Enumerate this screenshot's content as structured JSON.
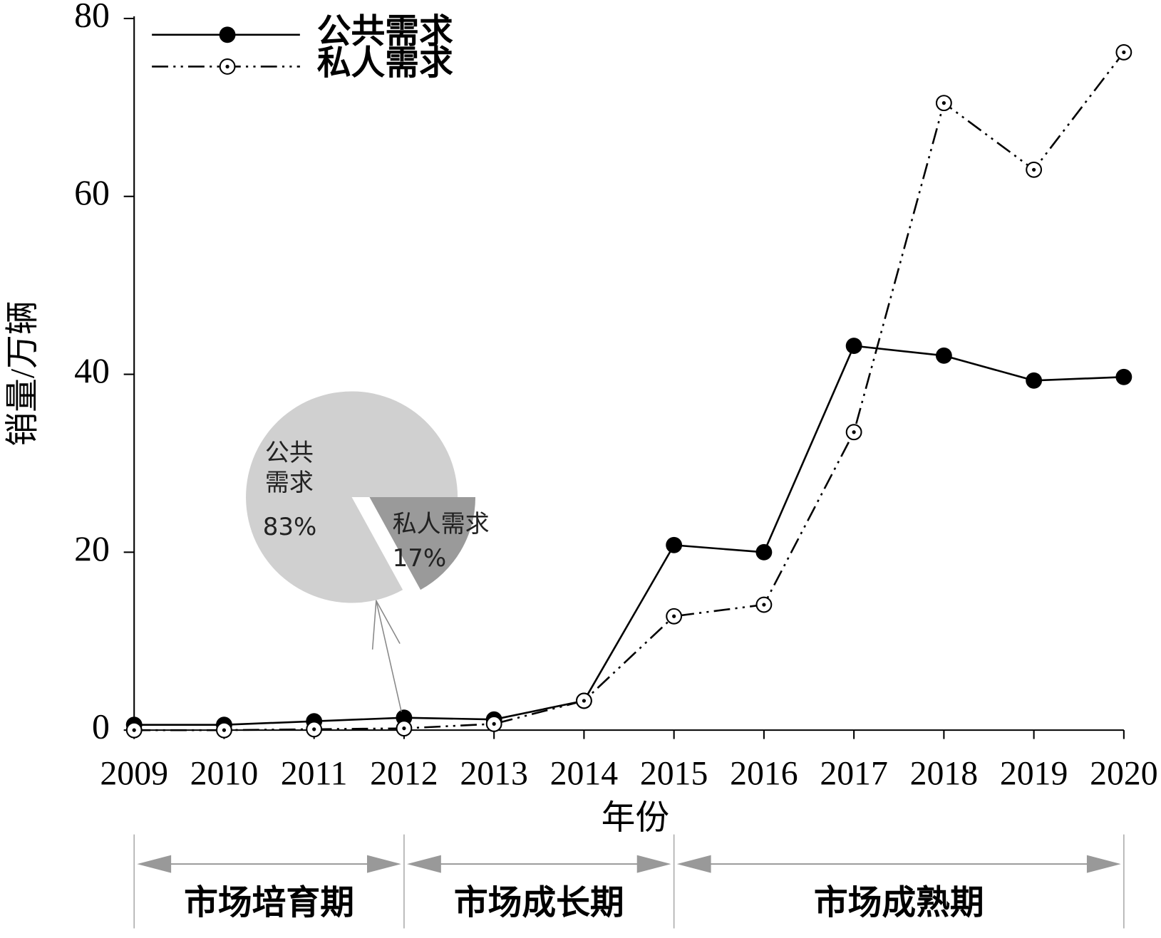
{
  "chart_data": [
    {
      "type": "line",
      "x_label": "年份",
      "y_label": "销量/万辆",
      "categories": [
        2009,
        2010,
        2011,
        2012,
        2013,
        2014,
        2015,
        2016,
        2017,
        2018,
        2019,
        2020
      ],
      "series": [
        {
          "name": "公共需求",
          "color": "#000000",
          "linestyle": "solid",
          "marker": "filled",
          "values": [
            0.6,
            0.6,
            1.0,
            1.4,
            1.2,
            3.3,
            20.8,
            20.0,
            43.2,
            42.1,
            39.3,
            39.7
          ]
        },
        {
          "name": "私人需求",
          "color": "#000000",
          "linestyle": "dashdotdot",
          "marker": "open-dot",
          "values": [
            0.0,
            0.0,
            0.1,
            0.2,
            0.7,
            3.3,
            12.8,
            14.1,
            33.5,
            70.5,
            63.0,
            76.2
          ]
        }
      ],
      "ylim": [
        0,
        80
      ],
      "yticks": [
        0,
        20,
        40,
        60,
        80
      ],
      "legend": "upper-left",
      "annotations": [
        {
          "text": "市场培育期",
          "from": 2009,
          "to": 2012
        },
        {
          "text": "市场成长期",
          "from": 2012,
          "to": 2015
        },
        {
          "text": "市场成熟期",
          "from": 2015,
          "to": 2020
        }
      ]
    },
    {
      "type": "pie",
      "labels": [
        "公共需求",
        "私人需求"
      ],
      "values": [
        83,
        17
      ],
      "value_labels": [
        "83%",
        "17%"
      ],
      "colors": [
        "#d0d0d0",
        "#9a9a9a"
      ]
    }
  ]
}
